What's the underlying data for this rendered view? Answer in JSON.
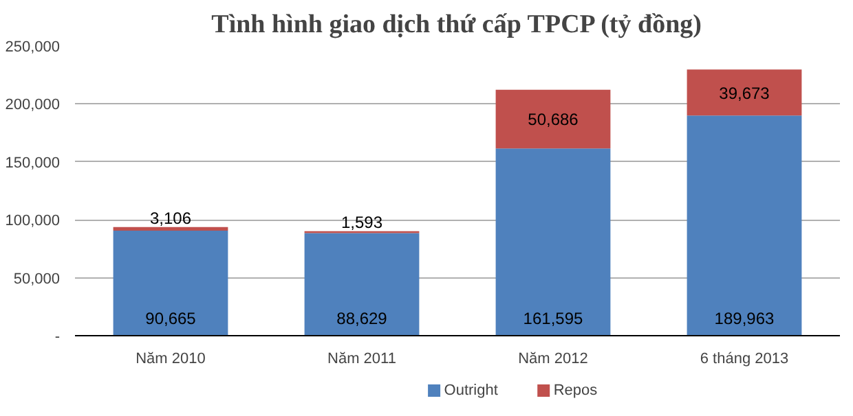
{
  "chart_data": {
    "type": "bar",
    "title": "Tình hình giao dịch thứ cấp TPCP (tỷ đồng)",
    "categories": [
      "Năm 2010",
      "Năm 2011",
      "Năm 2012",
      "6 tháng 2013"
    ],
    "stacked": true,
    "series": [
      {
        "name": "Outright",
        "color": "#4f81bd",
        "values": [
          90665,
          88629,
          161595,
          189963
        ],
        "value_labels": [
          "90,665",
          "88,629",
          "161,595",
          "189,963"
        ]
      },
      {
        "name": "Repos",
        "color": "#c0504d",
        "values": [
          3106,
          1593,
          50686,
          39673
        ],
        "value_labels": [
          "3,106",
          "1,593",
          "50,686",
          "39,673"
        ]
      }
    ],
    "ylim": [
      0,
      250000
    ],
    "yticks": [
      {
        "value": 0,
        "label": "-"
      },
      {
        "value": 50000,
        "label": "50,000"
      },
      {
        "value": 100000,
        "label": "100,000"
      },
      {
        "value": 150000,
        "label": "150,000"
      },
      {
        "value": 200000,
        "label": "200,000"
      },
      {
        "value": 250000,
        "label": "250,000"
      }
    ],
    "grid": "y",
    "legend": "bottom"
  }
}
